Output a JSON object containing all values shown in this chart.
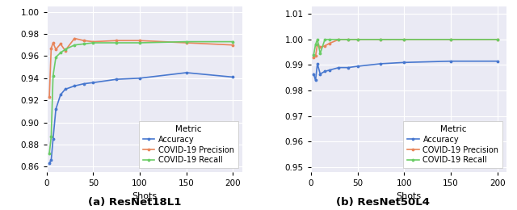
{
  "left": {
    "title": "(a) ResNet18L1",
    "xlabel": "Shots",
    "ylim": [
      0.855,
      1.005
    ],
    "yticks": [
      0.86,
      0.88,
      0.9,
      0.92,
      0.94,
      0.96,
      0.98,
      1.0
    ],
    "shots": [
      3,
      5,
      7,
      10,
      15,
      20,
      30,
      40,
      50,
      75,
      100,
      150,
      200
    ],
    "accuracy": [
      0.863,
      0.866,
      0.885,
      0.912,
      0.925,
      0.93,
      0.933,
      0.935,
      0.936,
      0.939,
      0.94,
      0.945,
      0.941
    ],
    "precision": [
      0.923,
      0.967,
      0.972,
      0.966,
      0.971,
      0.965,
      0.976,
      0.974,
      0.973,
      0.974,
      0.974,
      0.972,
      0.97
    ],
    "recall": [
      0.872,
      0.887,
      0.942,
      0.959,
      0.963,
      0.966,
      0.97,
      0.971,
      0.972,
      0.972,
      0.972,
      0.973,
      0.973
    ]
  },
  "right": {
    "title": "(b) ResNet50L4",
    "xlabel": "Shots",
    "ylim": [
      0.948,
      1.013
    ],
    "yticks": [
      0.95,
      0.96,
      0.97,
      0.98,
      0.99,
      1.0,
      1.01
    ],
    "shots": [
      3,
      5,
      7,
      10,
      15,
      20,
      30,
      40,
      50,
      75,
      100,
      150,
      200
    ],
    "accuracy": [
      0.9865,
      0.984,
      0.9905,
      0.9865,
      0.9875,
      0.988,
      0.989,
      0.989,
      0.9895,
      0.9905,
      0.991,
      0.9915,
      0.9915
    ],
    "precision": [
      0.993,
      0.9935,
      0.998,
      0.997,
      0.9975,
      0.9985,
      1.0,
      1.0,
      1.0,
      1.0,
      1.0,
      1.0,
      1.0
    ],
    "recall": [
      0.994,
      0.998,
      1.0,
      0.9945,
      1.0,
      1.0,
      1.0,
      1.0,
      1.0,
      1.0,
      1.0,
      1.0,
      1.0
    ]
  },
  "colors": {
    "accuracy": "#4878cf",
    "precision": "#e8855a",
    "recall": "#6acc65"
  },
  "bg_color": "#eaeaf4",
  "marker": ".",
  "markersize": 3.5,
  "linewidth": 1.2
}
